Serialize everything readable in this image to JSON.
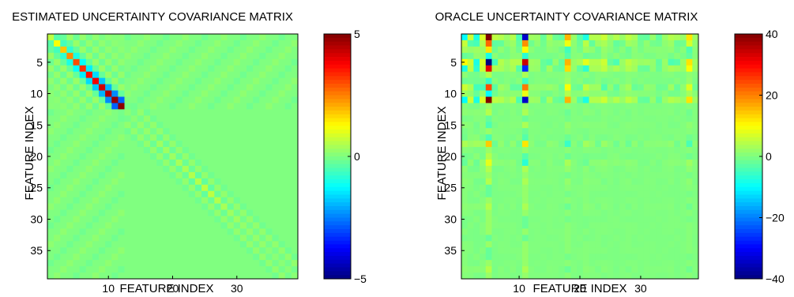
{
  "chart_data": [
    {
      "type": "heatmap",
      "title": "ESTIMATED UNCERTAINTY COVARIANCE MATRIX",
      "xlabel": "FEATURE INDEX",
      "ylabel": "FEATURE INDEX",
      "size": 39,
      "x_ticks": [
        "10",
        "20",
        "30"
      ],
      "y_ticks": [
        "5",
        "10",
        "15",
        "20",
        "25",
        "30",
        "35"
      ],
      "colorbar": {
        "min": -5,
        "max": 5,
        "ticks": [
          "5",
          "0",
          "−5"
        ]
      },
      "colormap": "jet",
      "values_description_free": true,
      "diagonal": [
        0.6,
        1.2,
        1.8,
        2.4,
        3.0,
        3.3,
        3.6,
        3.9,
        4.2,
        4.5,
        4.8,
        4.9,
        0.1,
        0.1,
        0.2,
        0.2,
        0.2,
        0.3,
        0.3,
        0.3,
        0.4,
        0.4,
        0.5,
        0.5,
        0.6,
        0.6,
        0.5,
        0.4,
        0.3,
        0.3,
        0.2,
        0.2,
        0.2,
        0.2,
        0.1,
        0.1,
        0.1,
        0.1,
        0.1
      ],
      "first_off_diagonal": [
        -0.4,
        -0.6,
        -0.8,
        -1.0,
        -1.2,
        -1.4,
        -1.6,
        -1.8,
        -2.0,
        -2.4,
        -2.8,
        -0.1,
        -0.1,
        -0.1,
        -0.1,
        -0.1,
        -0.2,
        -0.2,
        -0.2,
        -0.2,
        -0.2,
        -0.2,
        -0.3,
        -0.3,
        -0.3,
        -0.2,
        -0.2,
        -0.2,
        -0.1,
        -0.1,
        -0.1,
        -0.1,
        -0.1,
        -0.1,
        -0.1,
        -0.1,
        -0.1,
        -0.1
      ],
      "block_edge_value": 0.15
    },
    {
      "type": "heatmap",
      "title": "ORACLE UNCERTAINTY COVARIANCE MATRIX",
      "xlabel": "FEATURE INDEX",
      "ylabel": "FEATURE INDEX",
      "size": 39,
      "x_ticks": [
        "10",
        "20",
        "30"
      ],
      "y_ticks": [
        "5",
        "10",
        "15",
        "20",
        "25",
        "30",
        "35"
      ],
      "colorbar": {
        "min": -40,
        "max": 40,
        "ticks": [
          "40",
          "20",
          "0",
          "−20",
          "−40"
        ]
      },
      "colormap": "jet",
      "feature_loadings": [
        0.25,
        0.15,
        -0.2,
        0.18,
        1.0,
        -0.12,
        0.1,
        0.05,
        0.1,
        -0.1,
        0.85,
        0.06,
        0.05,
        -0.05,
        0.08,
        0.04,
        -0.06,
        0.4,
        0.05,
        -0.08,
        0.2,
        0.1,
        0.1,
        0.15,
        0.05,
        -0.1,
        0.05,
        0.12,
        0.08,
        -0.05,
        0.06,
        0.04,
        -0.06,
        0.05,
        0.1,
        -0.08,
        0.05,
        0.3,
        0.06
      ],
      "row_scale": [
        1.0,
        0.55,
        0.3,
        -0.2,
        1.0,
        0.8,
        0.1,
        -0.15,
        0.6,
        0.25,
        1.0,
        0.05,
        0.1,
        -0.05,
        0.1,
        0.05,
        -0.1,
        0.35,
        0.05,
        -0.1,
        0.2,
        0.1,
        0.05,
        0.1,
        0.05,
        -0.05,
        0.05,
        0.1,
        0.05,
        -0.05,
        0.05,
        0.05,
        -0.05,
        0.05,
        0.05,
        -0.05,
        0.05,
        0.1,
        0.05
      ]
    }
  ]
}
